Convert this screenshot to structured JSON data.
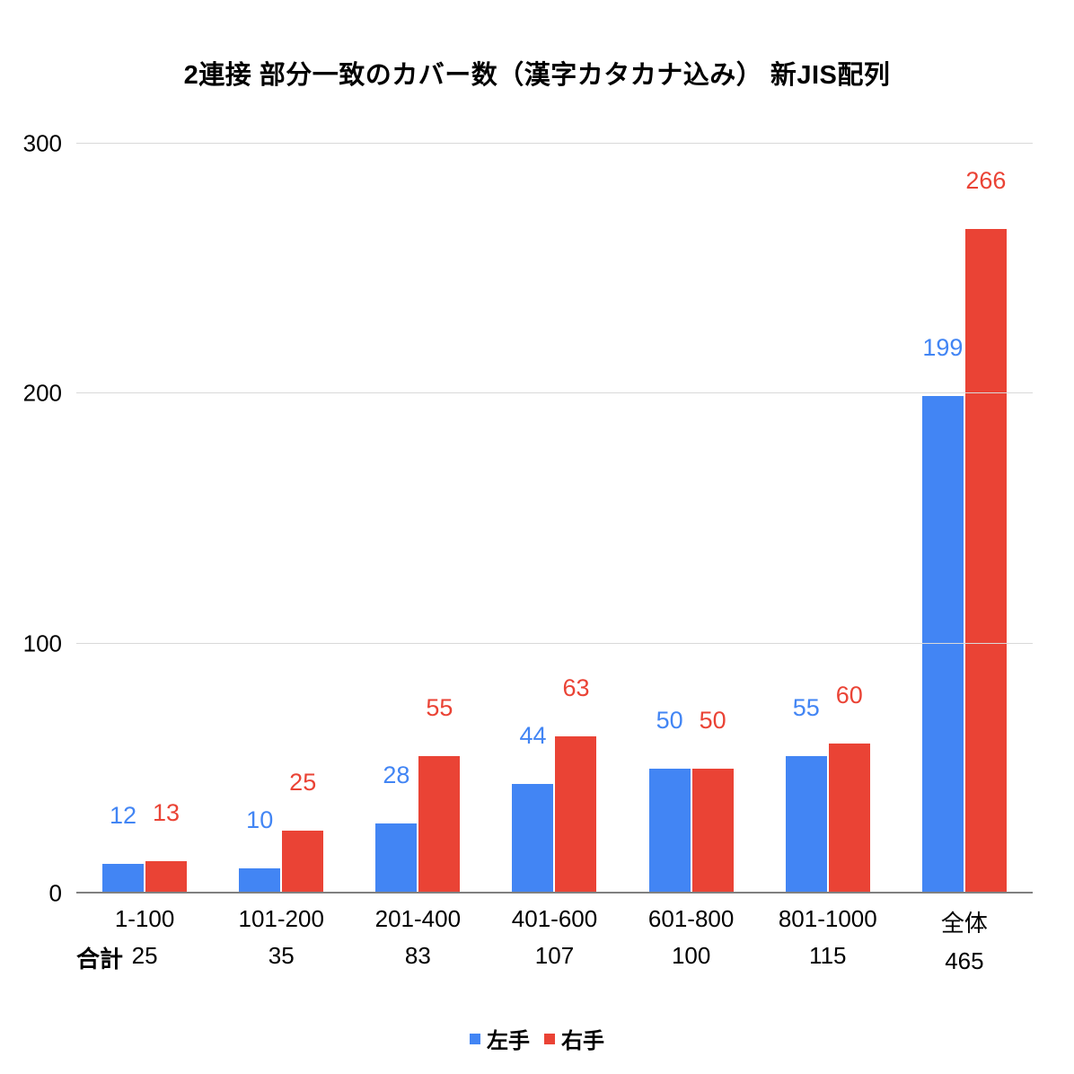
{
  "chart_data": {
    "type": "bar",
    "title": "2連接 部分一致のカバー数（漢字カタカナ込み） 新JIS配列",
    "categories": [
      "1-100",
      "101-200",
      "201-400",
      "401-600",
      "601-800",
      "801-1000",
      "全体"
    ],
    "series": [
      {
        "name": "左手",
        "color": "#4285F4",
        "values": [
          12,
          10,
          28,
          44,
          50,
          55,
          199
        ]
      },
      {
        "name": "右手",
        "color": "#EA4335",
        "values": [
          13,
          25,
          55,
          63,
          50,
          60,
          266
        ]
      }
    ],
    "totals_label": "合計",
    "totals": [
      25,
      35,
      83,
      107,
      100,
      115,
      465
    ],
    "xlabel": "",
    "ylabel": "",
    "ylim": [
      0,
      300
    ],
    "yticks": [
      0,
      100,
      200,
      300
    ],
    "grid": true,
    "legend_position": "bottom",
    "background_color": "#ffffff",
    "gridline_color": "#d9d9d9",
    "axis_line_color": "#808080"
  }
}
